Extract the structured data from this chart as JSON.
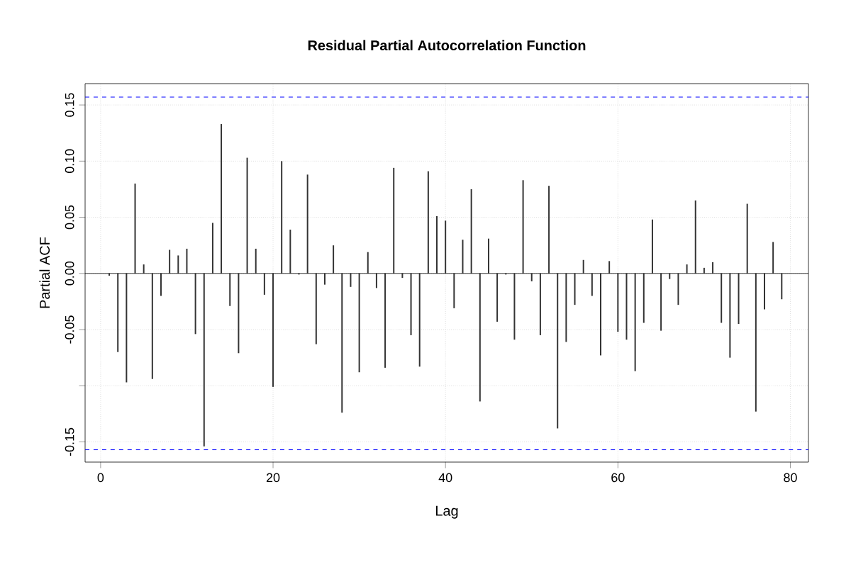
{
  "chart_data": {
    "type": "bar",
    "title": "Residual Partial Autocorrelation Function",
    "xlabel": "Lag",
    "ylabel": "Partial ACF",
    "x": [
      1,
      2,
      3,
      4,
      5,
      6,
      7,
      8,
      9,
      10,
      11,
      12,
      13,
      14,
      15,
      16,
      17,
      18,
      19,
      20,
      21,
      22,
      23,
      24,
      25,
      26,
      27,
      28,
      29,
      30,
      31,
      32,
      33,
      34,
      35,
      36,
      37,
      38,
      39,
      40,
      41,
      42,
      43,
      44,
      45,
      46,
      47,
      48,
      49,
      50,
      51,
      52,
      53,
      54,
      55,
      56,
      57,
      58,
      59,
      60,
      61,
      62,
      63,
      64,
      65,
      66,
      67,
      68,
      69,
      70,
      71,
      72,
      73,
      74,
      75,
      76,
      77,
      78,
      79
    ],
    "values": [
      -0.002,
      -0.07,
      -0.097,
      0.08,
      0.008,
      -0.094,
      -0.02,
      0.021,
      0.016,
      0.022,
      -0.054,
      -0.154,
      0.045,
      0.133,
      -0.029,
      -0.071,
      0.103,
      0.022,
      -0.019,
      -0.101,
      0.1,
      0.039,
      -0.001,
      0.088,
      -0.063,
      -0.01,
      0.025,
      -0.124,
      -0.012,
      -0.088,
      0.019,
      -0.013,
      -0.084,
      0.094,
      -0.004,
      -0.055,
      -0.083,
      0.091,
      0.051,
      0.047,
      -0.031,
      0.03,
      0.075,
      -0.114,
      0.031,
      -0.043,
      -0.001,
      -0.059,
      0.083,
      -0.007,
      -0.055,
      0.078,
      -0.138,
      -0.061,
      -0.028,
      0.012,
      -0.02,
      -0.073,
      0.011,
      -0.052,
      -0.059,
      -0.087,
      -0.044,
      0.048,
      -0.051,
      -0.005,
      -0.028,
      0.008,
      0.065,
      0.005,
      0.01,
      -0.044,
      -0.075,
      -0.045,
      0.062,
      -0.123,
      -0.032,
      0.028,
      -0.023
    ],
    "color": "#333333",
    "xlim": [
      -1.8,
      82.1
    ],
    "ylim": [
      -0.168,
      0.169
    ],
    "xticks": [
      0,
      20,
      40,
      60,
      80
    ],
    "yticks": [
      {
        "value": -0.15,
        "label": "-0.15"
      },
      {
        "value": -0.1,
        "label": null
      },
      {
        "value": -0.05,
        "label": "-0.05"
      },
      {
        "value": 0,
        "label": "0.00"
      },
      {
        "value": 0.05,
        "label": "0.05"
      },
      {
        "value": 0.1,
        "label": "0.10"
      },
      {
        "value": 0.15,
        "label": "0.15"
      }
    ],
    "grid": true,
    "ref_lines": [
      {
        "axis": "y",
        "value": 0.157,
        "color": "#0000ff",
        "line_style": "dashed"
      },
      {
        "axis": "y",
        "value": -0.157,
        "color": "#0000ff",
        "line_style": "dashed"
      }
    ]
  }
}
